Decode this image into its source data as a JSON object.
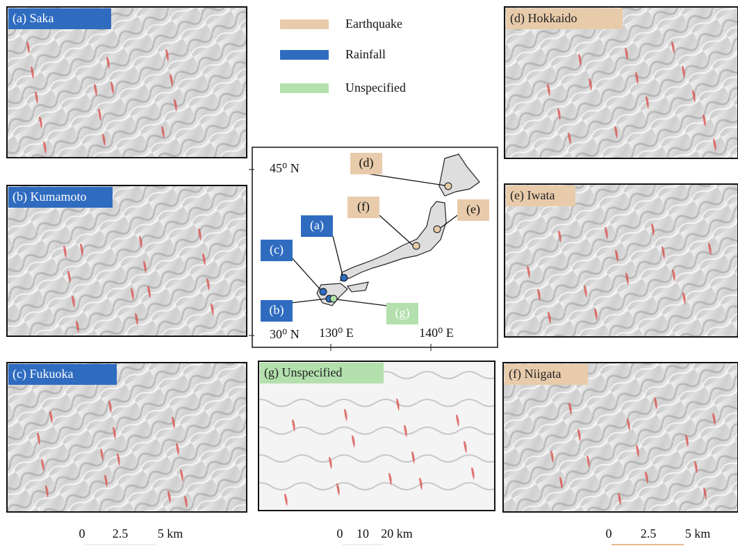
{
  "legend": [
    {
      "label": "Earthquake",
      "color": "#e8cbab"
    },
    {
      "label": "Rainfall",
      "color": "#2f6cc0"
    },
    {
      "label": "Unspecified",
      "color": "#b3e0ad"
    }
  ],
  "panels": [
    {
      "label": "(a) Saka",
      "trigger": 1
    },
    {
      "label": "(b) Kumamoto",
      "trigger": 1
    },
    {
      "label": "(c) Fukuoka",
      "trigger": 1
    },
    {
      "label": "(g) Unspecified",
      "trigger": 2
    },
    {
      "label": "(d) Hokkaido",
      "trigger": 0
    },
    {
      "label": "(e) Iwata",
      "trigger": 0
    },
    {
      "label": "(f) Niigata",
      "trigger": 0
    }
  ],
  "map": {
    "lat_labels": [
      "45⁰ N",
      "30⁰ N"
    ],
    "lon_labels": [
      "130⁰ E",
      "140⁰ E"
    ],
    "callouts": [
      "(a)",
      "(b)",
      "(c)",
      "(d)",
      "(e)",
      "(f)",
      "(g)"
    ]
  },
  "scale_bars": [
    [
      "0",
      "2.5",
      "5 km"
    ],
    [
      "0",
      "10",
      "20 km"
    ],
    [
      "0",
      "2.5",
      "5 km"
    ]
  ]
}
